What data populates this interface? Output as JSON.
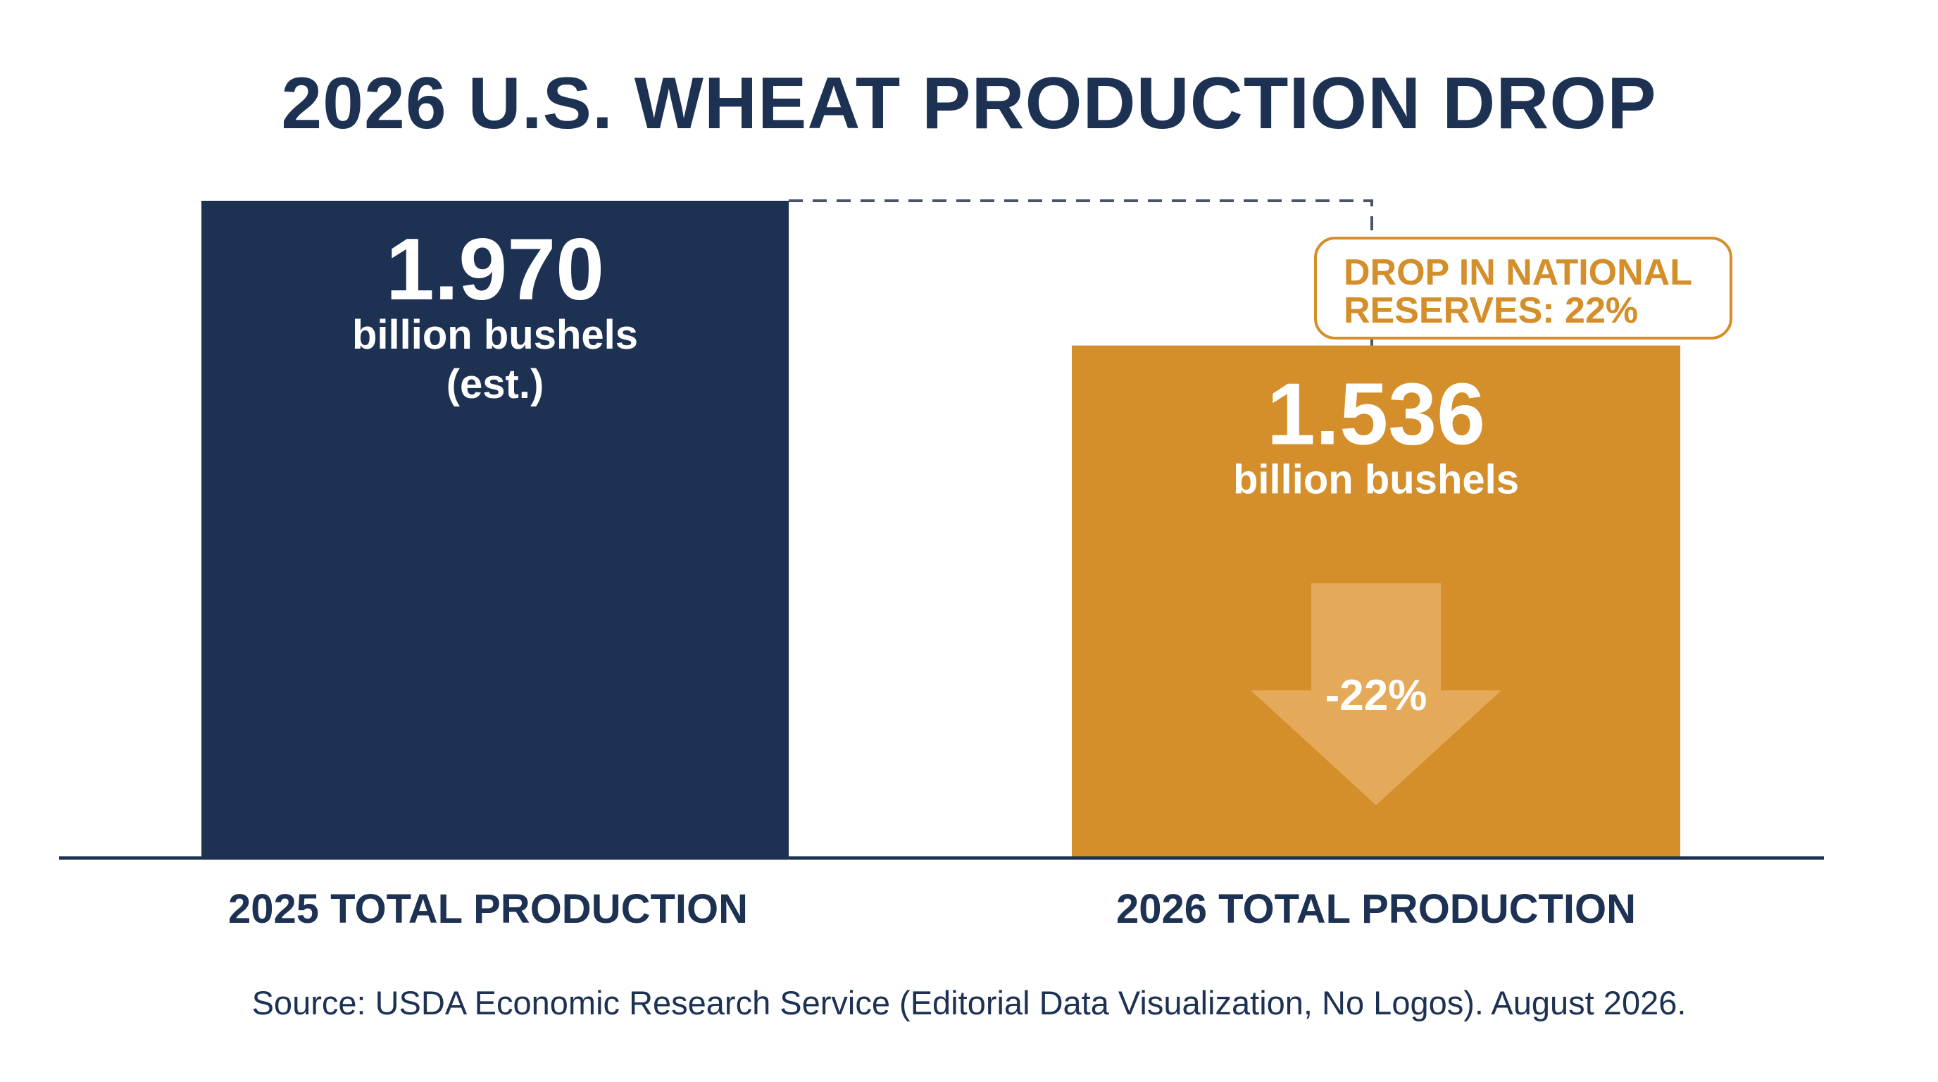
{
  "title": "2026 U.S. WHEAT PRODUCTION DROP",
  "colors": {
    "navy": "#1d3153",
    "orange": "#d48e2a",
    "arrow": "#e4aa5a",
    "axis": "#1d3153"
  },
  "callout": {
    "line1": "DROP IN NATIONAL",
    "line2": "RESERVES: 22%"
  },
  "arrow_label": "-22%",
  "source": "Source: USDA Economic Research Service (Editorial Data Visualization, No Logos). August 2026.",
  "chart_data": {
    "type": "bar",
    "title": "2026 U.S. WHEAT PRODUCTION DROP",
    "categories": [
      "2025 TOTAL PRODUCTION",
      "2026 TOTAL PRODUCTION"
    ],
    "values": [
      1.97,
      1.536
    ],
    "value_labels": [
      "1.970",
      "1.536"
    ],
    "unit_labels": [
      [
        "billion bushels",
        "(est.)"
      ],
      [
        "billion bushels"
      ]
    ],
    "annotations": [
      "DROP IN NATIONAL RESERVES: 22%",
      "-22%"
    ],
    "xlabel": "",
    "ylabel": "",
    "ylim": [
      0,
      1.97
    ],
    "grid": false,
    "legend": "none"
  }
}
